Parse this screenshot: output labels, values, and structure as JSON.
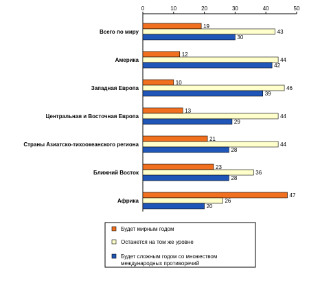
{
  "chart_data": {
    "type": "bar",
    "orientation": "horizontal",
    "categories": [
      "Всего по миру",
      "Америка",
      "Западная Европа",
      "Центральная и Восточная Европа",
      "Страны Азиатско-тихоокеанского региона",
      "Ближний Восток",
      "Африка"
    ],
    "series": [
      {
        "name": "Будет мирным годом",
        "color": "#F07020",
        "values": [
          19,
          12,
          10,
          13,
          21,
          23,
          47
        ]
      },
      {
        "name": "Останется на том же уровне",
        "color": "#FFFFCC",
        "values": [
          43,
          44,
          46,
          44,
          44,
          36,
          26
        ]
      },
      {
        "name": "Будет сложным годом со множеством международных противоречий",
        "color": "#1F56B8",
        "values": [
          30,
          42,
          39,
          29,
          28,
          28,
          20
        ]
      }
    ],
    "legend_lines": [
      [
        "Будет мирным годом"
      ],
      [
        "Останется на том же уровне"
      ],
      [
        "Будет сложным годом со множеством",
        "международных противоречий"
      ]
    ],
    "xlim": [
      0,
      50
    ],
    "xticks": [
      0,
      10,
      20,
      30,
      40,
      50
    ],
    "x_axis_position": "top",
    "grid": false,
    "legend_position": "bottom"
  }
}
